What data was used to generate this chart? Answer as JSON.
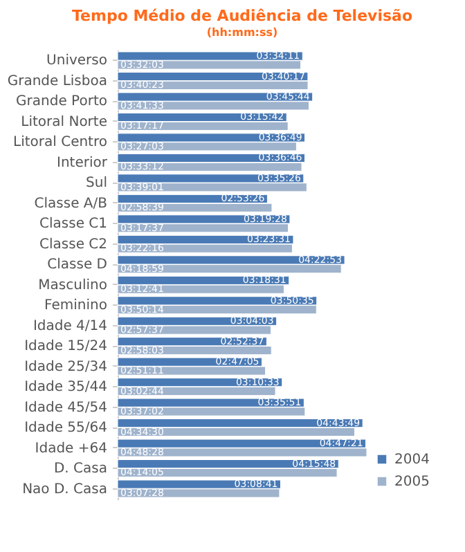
{
  "chart_data": {
    "type": "bar",
    "orientation": "horizontal",
    "title": "Tempo Médio de Audiência  de Televisão",
    "subtitle": "(hh:mm:ss)",
    "legend": "bottom right",
    "categories": [
      "Universo",
      "Grande Lisboa",
      "Grande Porto",
      "Litoral Norte",
      "Litoral Centro",
      "Interior",
      "Sul",
      "Classe A/B",
      "Classe C1",
      "Classe C2",
      "Classe D",
      "Masculino",
      "Feminino",
      "Idade 4/14",
      "Idade 15/24",
      "Idade 25/34",
      "Idade 35/44",
      "Idade 45/54",
      "Idade 55/64",
      "Idade +64",
      "D. Casa",
      "Nao D. Casa"
    ],
    "series": [
      {
        "name": "2004",
        "color": "#4a7ab5",
        "values": [
          12851,
          13217,
          13544,
          11742,
          13009,
          13006,
          12926,
          10406,
          11968,
          12211,
          15773,
          11911,
          13835,
          11043,
          10357,
          10025,
          11433,
          12951,
          17029,
          17241,
          15348,
          11321
        ],
        "value_labels": [
          "03:34:11",
          "03:40:17",
          "03:45:44",
          "03:15:42",
          "03:36:49",
          "03:36:46",
          "03:35:26",
          "02:53:26",
          "03:19:28",
          "03:23:31",
          "04:22:53",
          "03:18:31",
          "03:50:35",
          "03:04:03",
          "02:52:37",
          "02:47:05",
          "03:10:33",
          "03:35:51",
          "04:43:49",
          "04:47:21",
          "04:15:48",
          "03:08:41"
        ]
      },
      {
        "name": "2005",
        "color": "#9fb3cc",
        "values": [
          12723,
          13223,
          13293,
          11837,
          12423,
          12792,
          13141,
          10719,
          11857,
          12136,
          15539,
          11561,
          13814,
          10657,
          10683,
          10271,
          10964,
          13022,
          16470,
          17308,
          15245,
          11248
        ],
        "value_labels": [
          "03:32:03",
          "03:40:23",
          "03:41:33",
          "03:17:17",
          "03:27:03",
          "03:33:12",
          "03:39:01",
          "02:58:39",
          "03:17:37",
          "03:22:16",
          "04:18:59",
          "03:12:41",
          "03:50:14",
          "02:57:37",
          "02:58:03",
          "02:51:11",
          "03:02:44",
          "03:37:02",
          "04:34:30",
          "04:48:28",
          "04:14:05",
          "03:07:28"
        ]
      }
    ]
  }
}
